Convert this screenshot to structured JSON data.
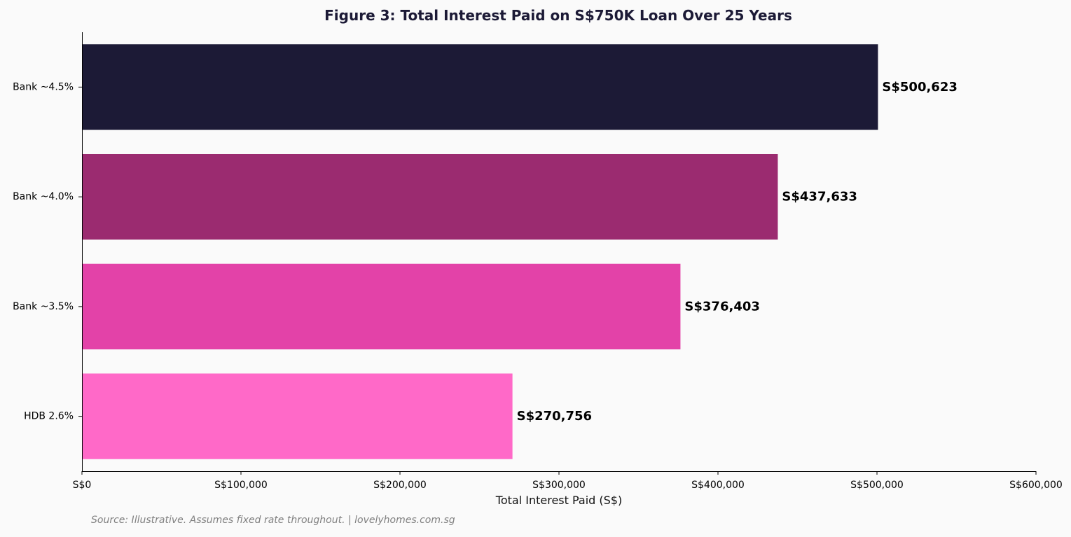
{
  "chart_data": {
    "type": "bar",
    "orientation": "horizontal",
    "title": "Figure 3: Total Interest Paid on S$750K Loan Over 25 Years",
    "xlabel": "Total Interest Paid (S$)",
    "ylabel": "",
    "categories": [
      "HDB 2.6%",
      "Bank ~3.5%",
      "Bank ~4.0%",
      "Bank ~4.5%"
    ],
    "values": [
      270756,
      376403,
      437633,
      500623
    ],
    "value_labels": [
      "S$270,756",
      "S$376,403",
      "S$437,633",
      "S$500,623"
    ],
    "colors": [
      "#ff69c8",
      "#e342a8",
      "#9b2b70",
      "#1c1a36"
    ],
    "xlim": [
      0,
      600000
    ],
    "x_ticks": [
      0,
      100000,
      200000,
      300000,
      400000,
      500000,
      600000
    ],
    "x_tick_labels": [
      "S$0",
      "S$100,000",
      "S$200,000",
      "S$300,000",
      "S$400,000",
      "S$500,000",
      "S$600,000"
    ],
    "grid": false
  },
  "footer": {
    "source": "Source: Illustrative. Assumes fixed rate throughout. | lovelyhomes.com.sg"
  },
  "colors": {
    "background": "#fafafa",
    "title": "#1c1a36",
    "axis": "#000000",
    "source_text": "#808080"
  }
}
